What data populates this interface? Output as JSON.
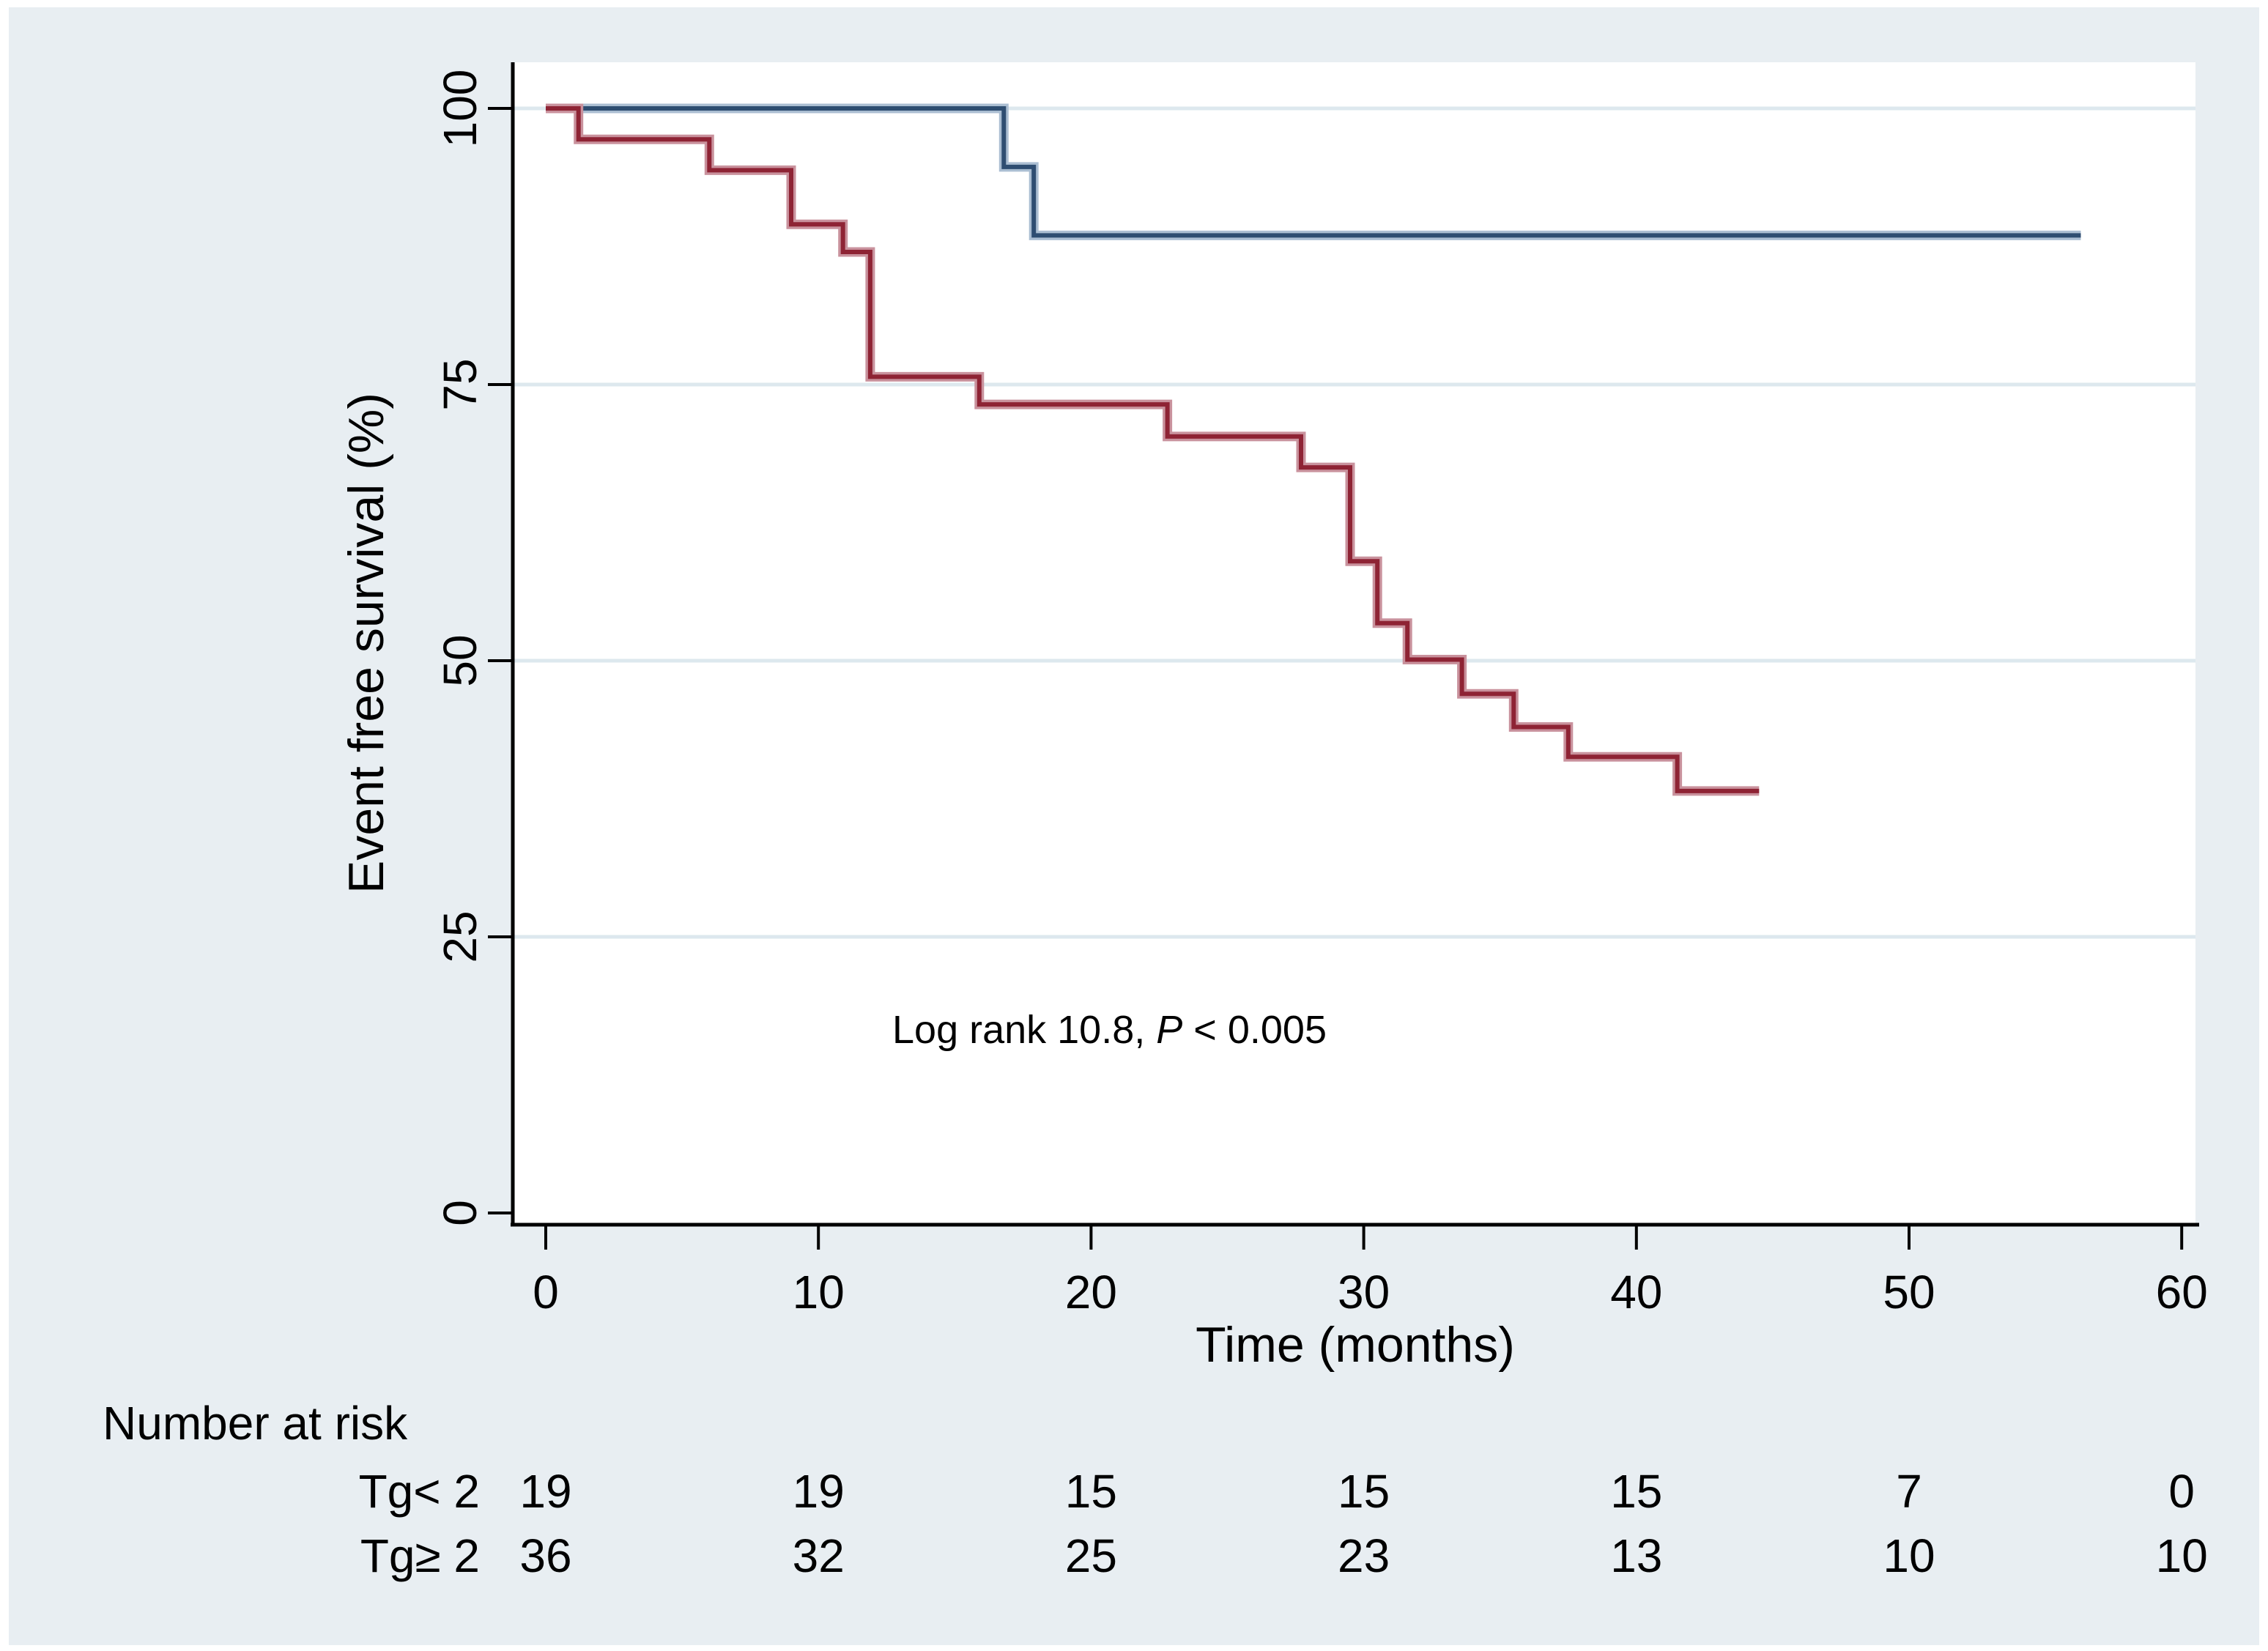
{
  "colors": {
    "panel_bg": "#e8eef2",
    "plot_bg": "#ffffff",
    "gridline": "#dde8ee",
    "axis": "#000000",
    "series_blue": "#2e4d71",
    "series_blue_halo": "#abbed2",
    "series_red": "#8e2334",
    "series_red_halo": "#c9929d"
  },
  "chart_data": {
    "type": "line",
    "subtype": "kaplan-meier-step",
    "title": "",
    "xlabel": "Time (months)",
    "ylabel": "Event free survival (%)",
    "xlim": [
      0,
      60
    ],
    "ylim": [
      0,
      100
    ],
    "x_ticks": [
      0,
      10,
      20,
      30,
      40,
      50,
      60
    ],
    "y_ticks": [
      0,
      25,
      50,
      75,
      100
    ],
    "grid": "horizontal",
    "legend_position": "none",
    "annotation": {
      "prefix": "Log rank 10.8, ",
      "italic": "P",
      "suffix": " < 0.005"
    },
    "series": [
      {
        "name": "Tg< 2",
        "color": "#2e4d71",
        "halo": "#abbed2",
        "points": [
          [
            0,
            100
          ],
          [
            16.8,
            100
          ],
          [
            16.8,
            94.7
          ],
          [
            17.9,
            94.7
          ],
          [
            17.9,
            88.5
          ],
          [
            56.3,
            88.5
          ]
        ]
      },
      {
        "name": "Tg≥ 2",
        "color": "#8e2334",
        "halo": "#c9929d",
        "points": [
          [
            0,
            100
          ],
          [
            1.2,
            100
          ],
          [
            1.2,
            97.2
          ],
          [
            6,
            97.2
          ],
          [
            6,
            94.4
          ],
          [
            9,
            94.4
          ],
          [
            9,
            89.5
          ],
          [
            10.9,
            89.5
          ],
          [
            10.9,
            87
          ],
          [
            11.9,
            87
          ],
          [
            11.9,
            75.7
          ],
          [
            15.9,
            75.7
          ],
          [
            15.9,
            73.2
          ],
          [
            22.8,
            73.2
          ],
          [
            22.8,
            70.3
          ],
          [
            27.7,
            70.3
          ],
          [
            27.7,
            67.5
          ],
          [
            29.5,
            67.5
          ],
          [
            29.5,
            59
          ],
          [
            30.5,
            59
          ],
          [
            30.5,
            53.4
          ],
          [
            31.6,
            53.4
          ],
          [
            31.6,
            50.1
          ],
          [
            33.6,
            50.1
          ],
          [
            33.6,
            47
          ],
          [
            35.5,
            47
          ],
          [
            35.5,
            44
          ],
          [
            37.5,
            44
          ],
          [
            37.5,
            41.3
          ],
          [
            41.5,
            41.3
          ],
          [
            41.5,
            38.2
          ],
          [
            44.5,
            38.2
          ]
        ]
      }
    ],
    "at_risk": {
      "heading": "Number at risk",
      "time_points": [
        0,
        10,
        20,
        30,
        40,
        50,
        60
      ],
      "rows": [
        {
          "label": "Tg< 2",
          "values": [
            "19",
            "19",
            "15",
            "15",
            "15",
            "7",
            "0"
          ]
        },
        {
          "label": "Tg≥ 2",
          "values": [
            "36",
            "32",
            "25",
            "23",
            "13",
            "10",
            "10"
          ]
        }
      ]
    }
  }
}
